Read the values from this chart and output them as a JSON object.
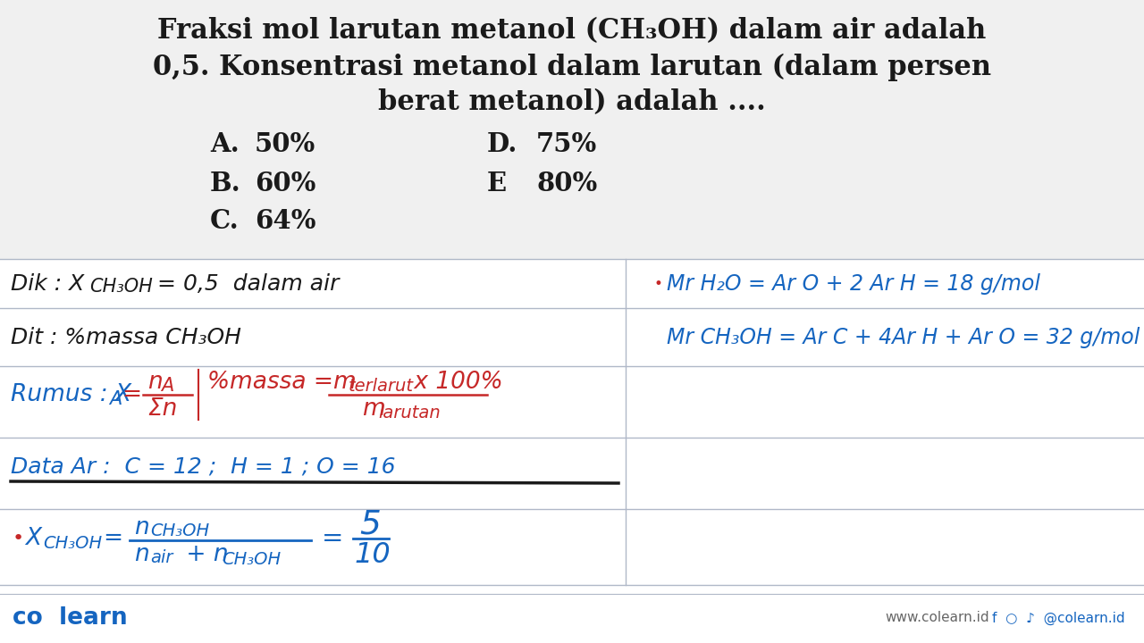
{
  "bg_color": "#f5f5f5",
  "line_bg": "#e8eaf0",
  "title_line1": "Fraksi mol larutan metanol (CH₃OH) dalam air adalah",
  "title_line2": "0,5. Konsentrasi metanol dalam larutan (dalam persen",
  "title_line3": "berat metanol) adalah ....",
  "opt_A_label": "A.",
  "opt_A_val": "50%",
  "opt_B_label": "B.",
  "opt_B_val": "60%",
  "opt_C_label": "C.",
  "opt_C_val": "64%",
  "opt_D_label": "D.",
  "opt_D_val": "75%",
  "opt_E_label": "E",
  "opt_E_val": "80%",
  "color_black": "#1a1a1a",
  "color_blue": "#1565c0",
  "color_red": "#c62828",
  "color_line": "#b0b8c8",
  "color_footer_blue": "#1565c0",
  "color_footer_gray": "#666666"
}
